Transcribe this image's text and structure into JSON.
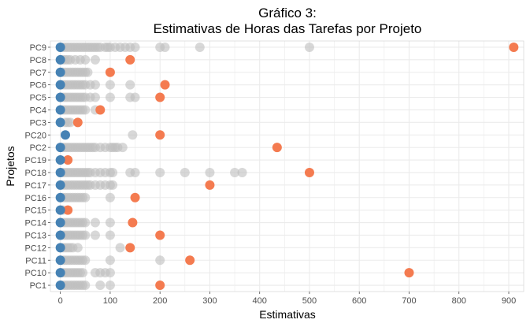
{
  "chart_data": {
    "type": "scatter",
    "title_line1": "Gráfico 3:",
    "title_line2": "Estimativas de Horas das Tarefas por Projeto",
    "xlabel": "Estimativas",
    "ylabel": "Projetos",
    "xlim": [
      -20,
      930
    ],
    "xticks": [
      0,
      100,
      200,
      300,
      400,
      500,
      600,
      700,
      800,
      900
    ],
    "grid": true,
    "colors": {
      "min": "#4682B4",
      "middle": "#BEBEBE",
      "max": "#F47B50",
      "grid": "#EBEBEB"
    },
    "categories": [
      "PC9",
      "PC8",
      "PC7",
      "PC6",
      "PC5",
      "PC4",
      "PC3",
      "PC20",
      "PC2",
      "PC19",
      "PC18",
      "PC17",
      "PC16",
      "PC15",
      "PC14",
      "PC13",
      "PC12",
      "PC11",
      "PC10",
      "PC1"
    ],
    "projects": [
      {
        "name": "PC9",
        "min": 0,
        "max": 910,
        "others": [
          5,
          10,
          15,
          20,
          25,
          30,
          35,
          40,
          45,
          50,
          55,
          60,
          65,
          70,
          75,
          80,
          90,
          95,
          100,
          110,
          120,
          130,
          140,
          150,
          200,
          210,
          280,
          500
        ]
      },
      {
        "name": "PC8",
        "min": 0,
        "max": 140,
        "others": [
          5,
          10,
          15,
          20,
          30,
          40,
          50,
          70
        ]
      },
      {
        "name": "PC7",
        "min": 0,
        "max": 100,
        "others": [
          5,
          10,
          15,
          20,
          25,
          30,
          35,
          40,
          45,
          50,
          55
        ]
      },
      {
        "name": "PC6",
        "min": 0,
        "max": 210,
        "others": [
          5,
          10,
          15,
          20,
          25,
          30,
          35,
          40,
          45,
          50,
          60,
          70,
          100,
          140
        ]
      },
      {
        "name": "PC5",
        "min": 0,
        "max": 200,
        "others": [
          5,
          10,
          15,
          20,
          25,
          30,
          35,
          40,
          45,
          50,
          60,
          70,
          100,
          140,
          150
        ]
      },
      {
        "name": "PC4",
        "min": 0,
        "max": 80,
        "others": [
          5,
          10,
          15,
          20,
          25,
          30,
          35,
          40,
          45,
          50,
          70
        ]
      },
      {
        "name": "PC3",
        "min": 0,
        "max": 35,
        "others": [
          10,
          15,
          20
        ]
      },
      {
        "name": "PC20",
        "min": 10,
        "max": 200,
        "others": [
          145
        ]
      },
      {
        "name": "PC2",
        "min": 0,
        "max": 435,
        "others": [
          5,
          10,
          15,
          20,
          25,
          30,
          35,
          40,
          45,
          50,
          55,
          60,
          65,
          70,
          80,
          90,
          100,
          105,
          110,
          115,
          125
        ]
      },
      {
        "name": "PC19",
        "min": 0,
        "max": 15,
        "others": []
      },
      {
        "name": "PC18",
        "min": 0,
        "max": 500,
        "others": [
          5,
          10,
          15,
          20,
          25,
          30,
          35,
          40,
          45,
          50,
          55,
          60,
          70,
          80,
          90,
          100,
          105,
          140,
          150,
          200,
          250,
          300,
          350,
          365
        ]
      },
      {
        "name": "PC17",
        "min": 0,
        "max": 300,
        "others": [
          5,
          10,
          15,
          20,
          25,
          30,
          35,
          40,
          45,
          50,
          55,
          60,
          70,
          80,
          90,
          100,
          105
        ]
      },
      {
        "name": "PC16",
        "min": 0,
        "max": 150,
        "others": [
          5,
          10,
          15,
          20,
          25,
          30,
          35,
          40,
          45,
          50,
          100
        ]
      },
      {
        "name": "PC15",
        "min": 0,
        "max": 15,
        "others": [
          5
        ]
      },
      {
        "name": "PC14",
        "min": 0,
        "max": 145,
        "others": [
          5,
          10,
          15,
          20,
          25,
          30,
          35,
          40,
          45,
          50,
          70,
          100
        ]
      },
      {
        "name": "PC13",
        "min": 0,
        "max": 200,
        "others": [
          5,
          10,
          15,
          20,
          25,
          30,
          35,
          40,
          45,
          50,
          70,
          100
        ]
      },
      {
        "name": "PC12",
        "min": 0,
        "max": 140,
        "others": [
          5,
          10,
          15,
          20,
          25,
          35,
          120
        ]
      },
      {
        "name": "PC11",
        "min": 0,
        "max": 260,
        "others": [
          5,
          10,
          15,
          20,
          25,
          30,
          35,
          40,
          45,
          50,
          100,
          200
        ]
      },
      {
        "name": "PC10",
        "min": 0,
        "max": 700,
        "others": [
          5,
          10,
          15,
          20,
          25,
          30,
          35,
          40,
          45,
          70,
          80,
          90,
          100
        ]
      },
      {
        "name": "PC1",
        "min": 0,
        "max": 200,
        "others": [
          5,
          10,
          15,
          20,
          25,
          30,
          35,
          40,
          45,
          50,
          80,
          100
        ]
      }
    ]
  }
}
